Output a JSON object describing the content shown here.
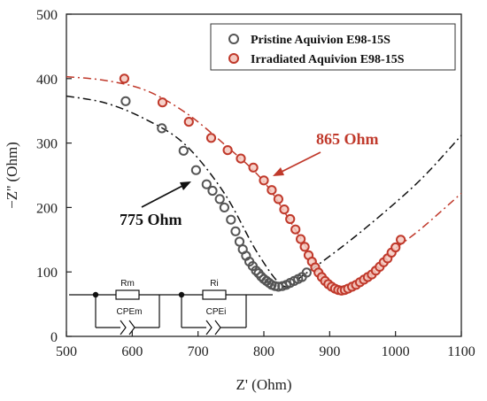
{
  "chart_data": {
    "type": "scatter",
    "xlabel": "Z' (Ohm)",
    "ylabel": "−Z'' (Ohm)",
    "xlim": [
      500,
      1100
    ],
    "ylim": [
      0,
      500
    ],
    "x_ticks": [
      "500",
      "600",
      "700",
      "800",
      "900",
      "1000",
      "1100"
    ],
    "y_ticks": [
      "0",
      "100",
      "200",
      "300",
      "400",
      "500"
    ],
    "legend_position": "top-right",
    "series": [
      {
        "name": "Pristine Aquivion E98-15S",
        "color": "#555555",
        "points": [
          [
            590,
            365
          ],
          [
            645,
            323
          ],
          [
            678,
            288
          ],
          [
            697,
            258
          ],
          [
            713,
            236
          ],
          [
            722,
            226
          ],
          [
            733,
            213
          ],
          [
            740,
            200
          ],
          [
            750,
            181
          ],
          [
            757,
            163
          ],
          [
            763,
            147
          ],
          [
            768,
            135
          ],
          [
            773,
            125
          ],
          [
            778,
            116
          ],
          [
            783,
            109
          ],
          [
            788,
            102
          ],
          [
            792,
            98
          ],
          [
            796,
            93
          ],
          [
            800,
            89
          ],
          [
            804,
            86
          ],
          [
            808,
            83
          ],
          [
            812,
            80
          ],
          [
            817,
            78
          ],
          [
            822,
            77
          ],
          [
            828,
            78
          ],
          [
            834,
            80
          ],
          [
            840,
            83
          ],
          [
            846,
            86
          ],
          [
            852,
            89
          ],
          [
            858,
            92
          ],
          [
            865,
            99
          ]
        ],
        "fit": [
          [
            500,
            373
          ],
          [
            560,
            362
          ],
          [
            620,
            337
          ],
          [
            680,
            298
          ],
          [
            740,
            222
          ],
          [
            790,
            130
          ],
          [
            830,
            78
          ],
          [
            860,
            95
          ],
          [
            920,
            140
          ],
          [
            980,
            190
          ],
          [
            1040,
            245
          ],
          [
            1100,
            312
          ]
        ]
      },
      {
        "name": "Irradiated Aquivion E98-15S",
        "color": "#c0392b",
        "points": [
          [
            588,
            400
          ],
          [
            646,
            363
          ],
          [
            686,
            333
          ],
          [
            720,
            308
          ],
          [
            745,
            289
          ],
          [
            765,
            276
          ],
          [
            784,
            262
          ],
          [
            800,
            242
          ],
          [
            812,
            227
          ],
          [
            822,
            213
          ],
          [
            831,
            197
          ],
          [
            840,
            182
          ],
          [
            848,
            166
          ],
          [
            856,
            151
          ],
          [
            862,
            139
          ],
          [
            868,
            126
          ],
          [
            873,
            116
          ],
          [
            878,
            107
          ],
          [
            883,
            99
          ],
          [
            888,
            92
          ],
          [
            893,
            86
          ],
          [
            898,
            81
          ],
          [
            903,
            77
          ],
          [
            908,
            74
          ],
          [
            913,
            72
          ],
          [
            918,
            71
          ],
          [
            923,
            72
          ],
          [
            928,
            74
          ],
          [
            934,
            77
          ],
          [
            940,
            80
          ],
          [
            946,
            84
          ],
          [
            952,
            88
          ],
          [
            958,
            92
          ],
          [
            964,
            96
          ],
          [
            970,
            102
          ],
          [
            976,
            108
          ],
          [
            982,
            115
          ],
          [
            988,
            121
          ],
          [
            994,
            130
          ],
          [
            1000,
            138
          ],
          [
            1008,
            150
          ]
        ],
        "fit": [
          [
            500,
            403
          ],
          [
            560,
            397
          ],
          [
            620,
            382
          ],
          [
            680,
            348
          ],
          [
            740,
            298
          ],
          [
            800,
            240
          ],
          [
            850,
            162
          ],
          [
            890,
            96
          ],
          [
            915,
            71
          ],
          [
            940,
            80
          ],
          [
            990,
            128
          ],
          [
            1040,
            168
          ],
          [
            1100,
            222
          ]
        ]
      }
    ],
    "annotations": [
      {
        "text": "865 Ohm",
        "color": "#c0392b",
        "arrow_to": [
          800,
          252
        ]
      },
      {
        "text": "775 Ohm",
        "color": "#111111",
        "arrow_to": [
          713,
          237
        ]
      }
    ],
    "circuit": {
      "labels": [
        "Rm",
        "Ri",
        "CPEm",
        "CPEi"
      ]
    }
  }
}
